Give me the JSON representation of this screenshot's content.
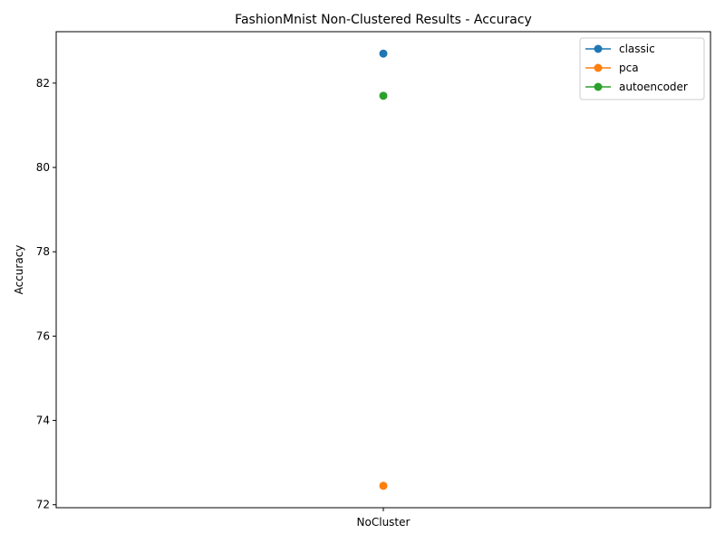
{
  "chart_data": {
    "type": "line",
    "title": "FashionMnist Non-Clustered Results - Accuracy",
    "xlabel": "",
    "ylabel": "Accuracy",
    "categories": [
      "NoCluster"
    ],
    "ylim": [
      71.93,
      83.22
    ],
    "yticks": [
      72,
      74,
      76,
      78,
      80,
      82
    ],
    "grid": false,
    "legend_position": "top-right",
    "series": [
      {
        "name": "classic",
        "color": "#1f77b4",
        "values": [
          82.7
        ]
      },
      {
        "name": "pca",
        "color": "#ff7f0e",
        "values": [
          72.45
        ]
      },
      {
        "name": "autoencoder",
        "color": "#2ca02c",
        "values": [
          81.7
        ]
      }
    ]
  }
}
